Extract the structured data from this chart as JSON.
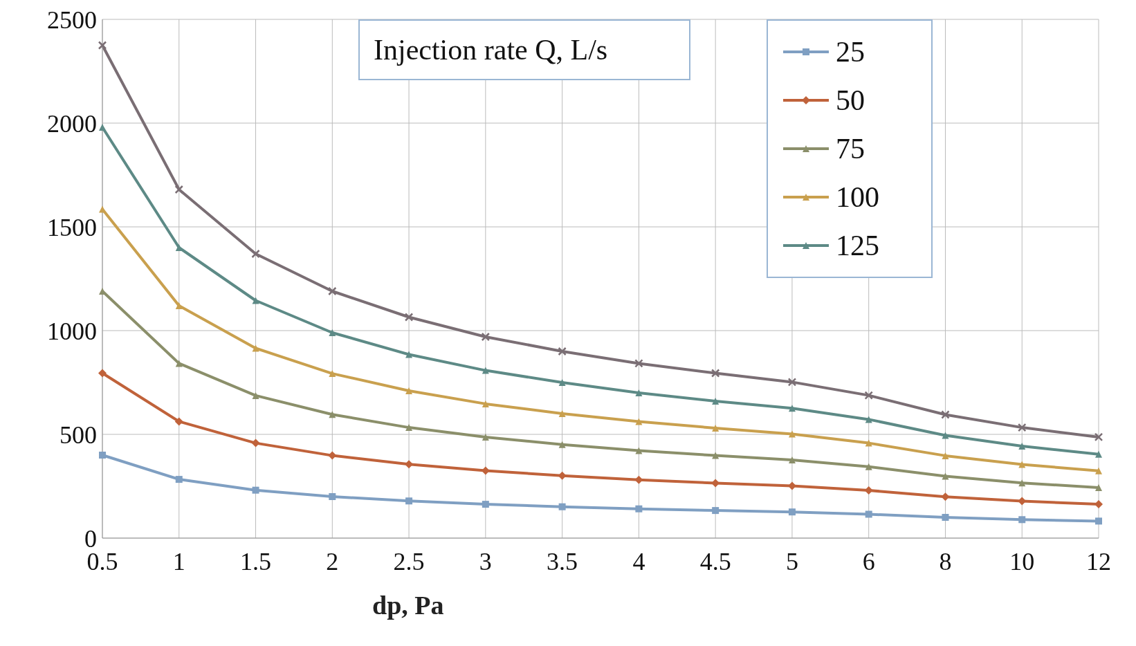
{
  "chart_data": {
    "type": "line",
    "xlabel": "dp, Pa",
    "legend_title": "Injection rate Q, L/s",
    "categories": [
      "0.5",
      "1",
      "1.5",
      "2",
      "2.5",
      "3",
      "3.5",
      "4",
      "4.5",
      "5",
      "6",
      "8",
      "10",
      "12"
    ],
    "series": [
      {
        "name": "25",
        "color": "#7f9fc2",
        "marker": "square",
        "values": [
          400,
          283,
          231,
          200,
          179,
          163,
          151,
          141,
          133,
          126,
          115,
          100,
          89,
          82
        ]
      },
      {
        "name": "50",
        "color": "#c0623a",
        "marker": "diamond",
        "values": [
          795,
          562,
          458,
          398,
          356,
          325,
          301,
          281,
          265,
          252,
          230,
          199,
          178,
          163
        ]
      },
      {
        "name": "75",
        "color": "#8b8f6a",
        "marker": "triangle",
        "values": [
          1190,
          842,
          687,
          596,
          533,
          487,
          451,
          422,
          398,
          377,
          344,
          298,
          266,
          243
        ]
      },
      {
        "name": "100",
        "color": "#c9a04e",
        "marker": "triangle",
        "values": [
          1585,
          1120,
          915,
          793,
          710,
          647,
          600,
          562,
          530,
          502,
          458,
          397,
          355,
          324
        ]
      },
      {
        "name": "125",
        "color": "#5d8a86",
        "marker": "triangle",
        "values": [
          1980,
          1400,
          1145,
          990,
          885,
          808,
          750,
          700,
          660,
          626,
          572,
          495,
          443,
          404
        ]
      },
      {
        "color": "#7a6e74",
        "marker": "cross",
        "values": [
          2375,
          1680,
          1370,
          1190,
          1065,
          970,
          900,
          842,
          795,
          752,
          688,
          595,
          533,
          487
        ]
      }
    ],
    "ylim": [
      0,
      2500
    ],
    "yticks": [
      0,
      500,
      1000,
      1500,
      2000,
      2500
    ],
    "grid": true,
    "legend": "top right",
    "line_style": "solid"
  }
}
